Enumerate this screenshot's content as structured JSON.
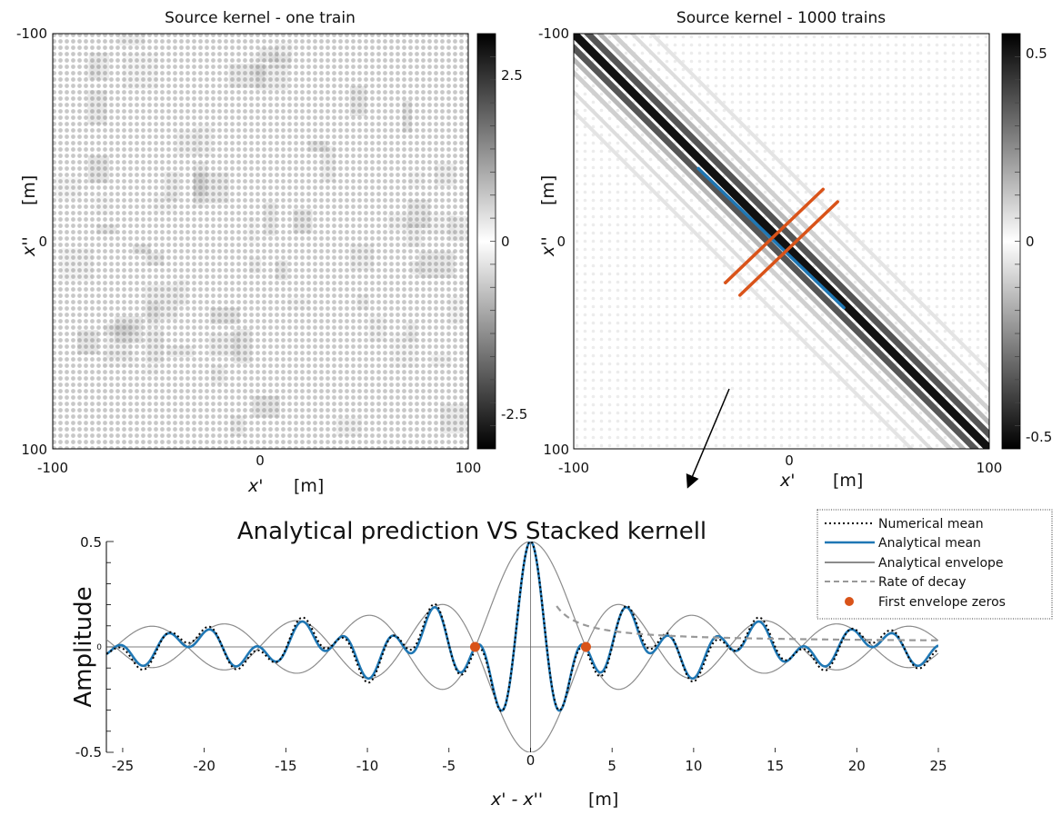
{
  "chart_data": [
    {
      "type": "heatmap",
      "title": "Source kernel  - one train",
      "xlabel_var": "x'",
      "xlabel_unit": "[m]",
      "ylabel_var": "x''",
      "ylabel_unit": "[m]",
      "xlim": [
        -100,
        100
      ],
      "ylim": [
        -100,
        100
      ],
      "x_ticks": [
        "-100",
        "0",
        "100"
      ],
      "y_ticks": [
        "-100",
        "0",
        "100"
      ],
      "colormap": "grayscale",
      "colorbar": {
        "range": [
          -3,
          3
        ],
        "ticks": [
          "2.5",
          "0",
          "-2.5"
        ],
        "tick_values": [
          2.5,
          0,
          -2.5
        ]
      }
    },
    {
      "type": "heatmap",
      "title": "Source kernel - 1000 trains",
      "xlabel_var": "x'",
      "xlabel_unit": "[m]",
      "ylabel_var": "x''",
      "ylabel_unit": "[m]",
      "xlim": [
        -100,
        100
      ],
      "ylim": [
        -100,
        100
      ],
      "x_ticks": [
        "-100",
        "0",
        "100"
      ],
      "y_ticks": [
        "-100",
        "0",
        "100"
      ],
      "colormap": "grayscale",
      "colorbar": {
        "range": [
          -0.55,
          0.55
        ],
        "ticks": [
          "0.5",
          "0",
          "-0.5"
        ],
        "tick_values": [
          0.5,
          0,
          -0.5
        ]
      },
      "overlay_lines": [
        {
          "color": "#1f77b4",
          "from": [
            -40,
            35
          ],
          "to": [
            30,
            -32
          ]
        },
        {
          "color": "#d95319",
          "from": [
            -27,
            -20
          ],
          "to": [
            20,
            25
          ]
        },
        {
          "color": "#d95319",
          "from": [
            -20,
            -26
          ],
          "to": [
            27,
            19
          ]
        }
      ],
      "diagonal": "dark band along x' = x''"
    },
    {
      "type": "line",
      "title": "Analytical prediction VS Stacked kernell",
      "xlabel_var": "x' - x''",
      "xlabel_unit": "[m]",
      "ylabel": "Amplitude",
      "xlim": [
        -26,
        25
      ],
      "ylim": [
        -0.5,
        0.5
      ],
      "x_ticks": [
        -25,
        -20,
        -15,
        -10,
        -5,
        0,
        5,
        10,
        15,
        20,
        25
      ],
      "y_ticks": [
        "0.5",
        "0",
        "-0.5"
      ],
      "y_tick_values": [
        0.5,
        0,
        -0.5
      ],
      "legend_position": "top-right",
      "series": [
        {
          "name": "Numerical mean",
          "color": "#000000",
          "style": "dotted",
          "model": "J0(1.58x)^2 with noise",
          "amplitude": 0.5
        },
        {
          "name": "Analytical mean",
          "color": "#1f77b4",
          "style": "solid",
          "model": "0.5 cos(1.58x) J0(0.71x)",
          "amplitude": 0.5
        },
        {
          "name": "Analytical envelope",
          "color": "#8c8c8c",
          "style": "solid",
          "model": "± 0.5 J0(0.71x)",
          "amplitude": 0.5
        },
        {
          "name": "Rate of decay",
          "color": "#999999",
          "style": "dashed",
          "model": "0.44 / (1.58 x)",
          "x_start": 1.6
        },
        {
          "name": "First envelope zeros",
          "color": "#d95319",
          "style": "marker",
          "x": [
            -3.4,
            3.4
          ],
          "y": [
            0,
            0
          ]
        }
      ]
    }
  ]
}
